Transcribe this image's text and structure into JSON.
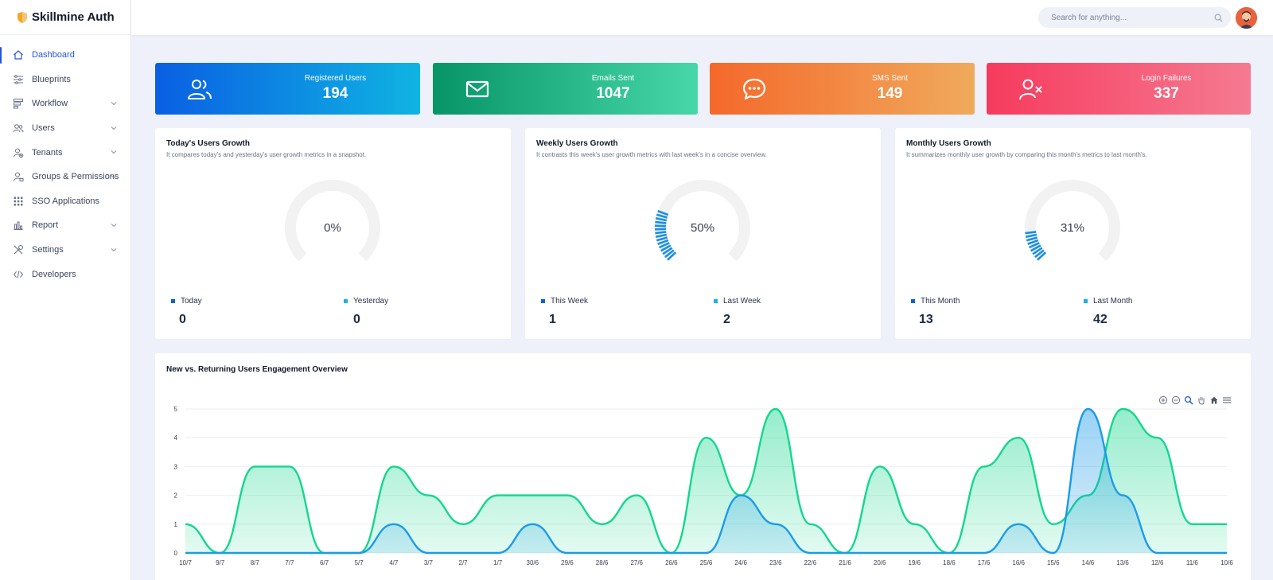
{
  "app": {
    "name": "Skillmine Auth"
  },
  "search": {
    "placeholder": "Search for anything..."
  },
  "sidebar": {
    "items": [
      {
        "label": "Dashboard",
        "icon": "home-icon",
        "active": true,
        "chevron": false
      },
      {
        "label": "Blueprints",
        "icon": "sliders-icon",
        "active": false,
        "chevron": false
      },
      {
        "label": "Workflow",
        "icon": "workflow-icon",
        "active": false,
        "chevron": true
      },
      {
        "label": "Users",
        "icon": "users-icon",
        "active": false,
        "chevron": true
      },
      {
        "label": "Tenants",
        "icon": "tenant-icon",
        "active": false,
        "chevron": true
      },
      {
        "label": "Groups & Permissions",
        "icon": "groups-icon",
        "active": false,
        "chevron": true
      },
      {
        "label": "SSO Applications",
        "icon": "grid-icon",
        "active": false,
        "chevron": false
      },
      {
        "label": "Report",
        "icon": "bar-chart-icon",
        "active": false,
        "chevron": true
      },
      {
        "label": "Settings",
        "icon": "tools-icon",
        "active": false,
        "chevron": true
      },
      {
        "label": "Developers",
        "icon": "code-icon",
        "active": false,
        "chevron": false
      }
    ]
  },
  "stats": [
    {
      "label": "Registered Users",
      "value": "194",
      "icon": "users-icon",
      "from": "#0a5fe3",
      "to": "#0fb4e2"
    },
    {
      "label": "Emails Sent",
      "value": "1047",
      "icon": "mail-icon",
      "from": "#079567",
      "to": "#47d7a8"
    },
    {
      "label": "SMS Sent",
      "value": "149",
      "icon": "chat-icon",
      "from": "#f4692b",
      "to": "#f0aa5c"
    },
    {
      "label": "Login Failures",
      "value": "337",
      "icon": "user-x-icon",
      "from": "#f63b5e",
      "to": "#f57a91"
    }
  ],
  "gauges": [
    {
      "title": "Today's Users Growth",
      "desc": "It compares today's and yesterday's user growth metrics in a snapshot.",
      "percent": 0,
      "percent_label": "0%",
      "current_label": "Today",
      "current_value": "0",
      "previous_label": "Yesterday",
      "previous_value": "0"
    },
    {
      "title": "Weekly Users Growth",
      "desc": "It contrasts this week's user growth metrics with last week's in a concise overview.",
      "percent": 50,
      "percent_label": "50%",
      "current_label": "This Week",
      "current_value": "1",
      "previous_label": "Last Week",
      "previous_value": "2"
    },
    {
      "title": "Monthly Users Growth",
      "desc": "It summarizes monthly user growth by comparing this month's metrics to last month's.",
      "percent": 31,
      "percent_label": "31%",
      "current_label": "This Month",
      "current_value": "13",
      "previous_label": "Last Month",
      "previous_value": "42"
    }
  ],
  "colors": {
    "accent": "#2156d9",
    "current_dot": "#0a5fe3",
    "previous_dot": "#18b3ea",
    "gauge_fill": "#1a8fe3",
    "gauge_track": "#f2f2f2",
    "returning": "#13d78e",
    "new": "#1b9be8"
  },
  "engagement": {
    "title": "New vs. Returning Users Engagement Overview"
  },
  "chart_data": {
    "type": "area",
    "title": "New vs. Returning Users Engagement Overview",
    "categories": [
      "10/7",
      "9/7",
      "8/7",
      "7/7",
      "6/7",
      "5/7",
      "4/7",
      "3/7",
      "2/7",
      "1/7",
      "30/6",
      "29/6",
      "28/6",
      "27/6",
      "26/6",
      "25/6",
      "24/6",
      "23/6",
      "22/6",
      "21/6",
      "20/6",
      "19/6",
      "18/6",
      "17/6",
      "16/6",
      "15/6",
      "14/6",
      "13/6",
      "12/6",
      "11/6",
      "10/6"
    ],
    "ylim": [
      0,
      5
    ],
    "yticks": [
      0,
      1,
      2,
      3,
      4,
      5
    ],
    "grid": true,
    "series": [
      {
        "values": [
          1,
          0,
          3,
          3,
          0,
          0,
          3,
          2,
          1,
          2,
          2,
          2,
          1,
          2,
          0,
          4,
          2,
          5,
          1,
          0,
          3,
          1,
          0,
          3,
          4,
          1,
          2,
          5,
          4,
          1,
          1
        ]
      },
      {
        "values": [
          0,
          0,
          0,
          0,
          0,
          0,
          1,
          0,
          0,
          0,
          1,
          0,
          0,
          0,
          0,
          0,
          2,
          1,
          0,
          0,
          0,
          0,
          0,
          0,
          1,
          0,
          5,
          2,
          0,
          0,
          0
        ]
      }
    ]
  }
}
